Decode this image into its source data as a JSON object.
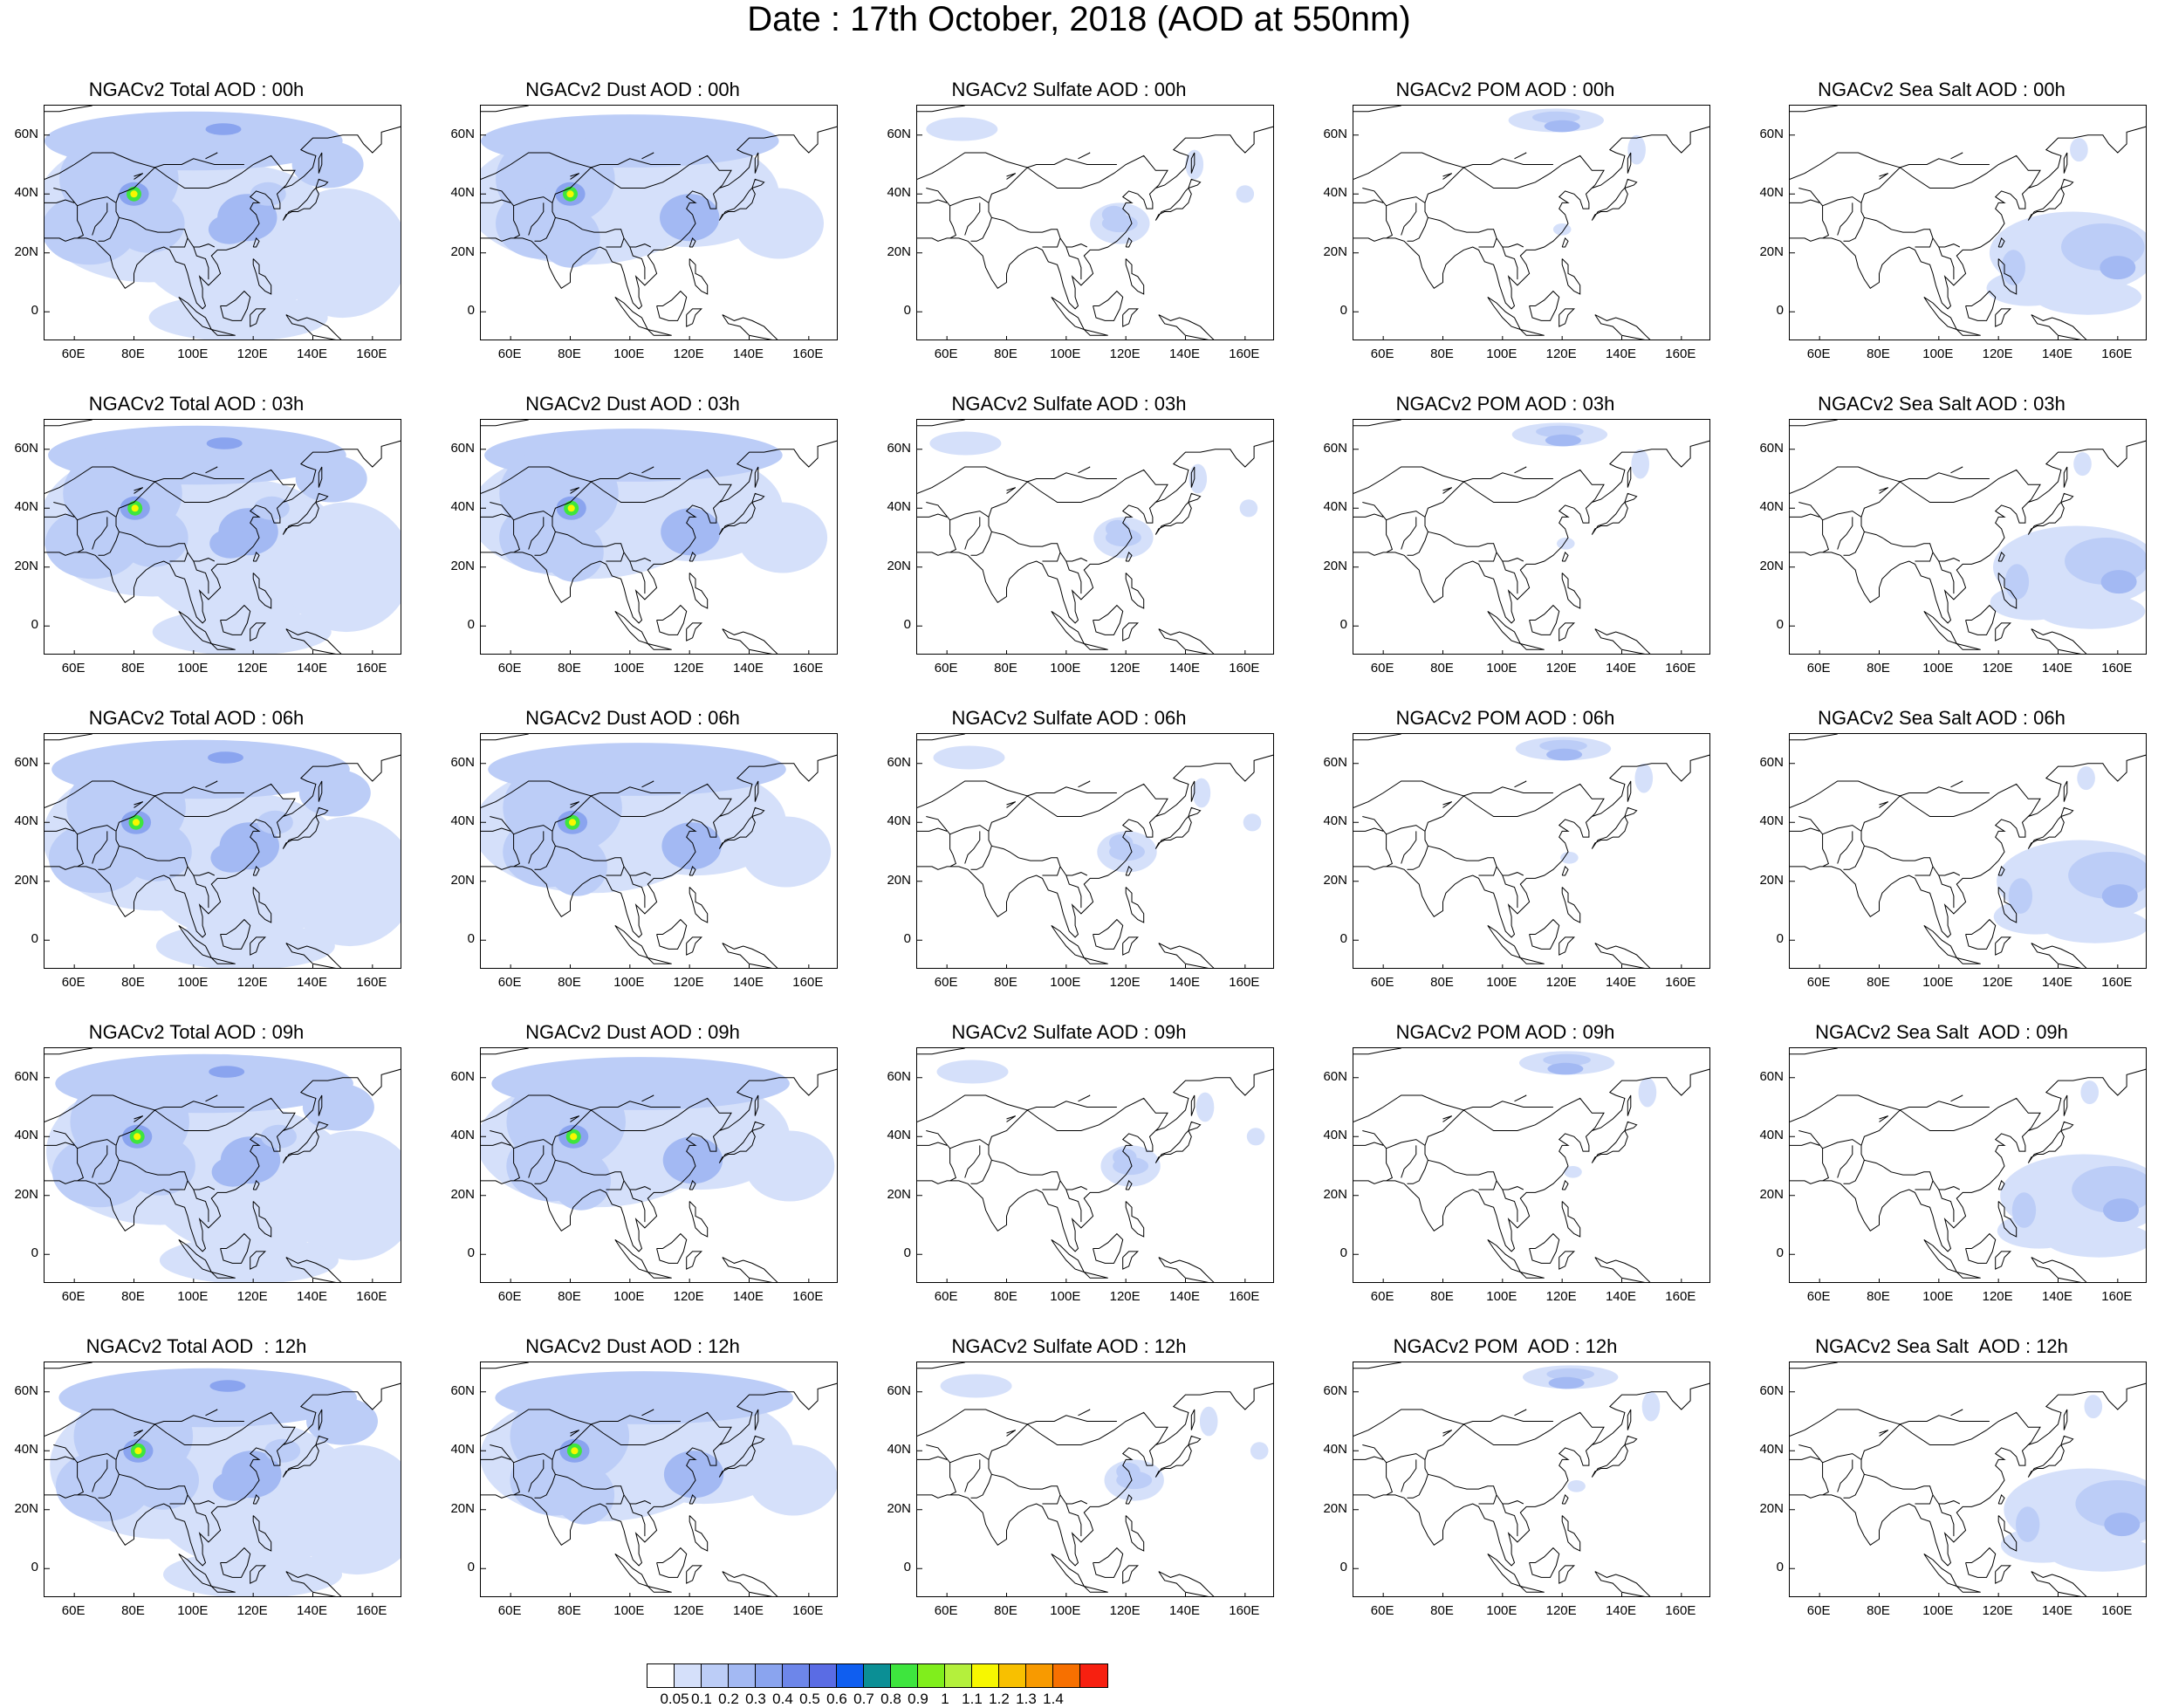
{
  "title": "Date : 17th October, 2018 (AOD at 550nm)",
  "lat_ticks": [
    "60N",
    "40N",
    "20N",
    "0"
  ],
  "lon_ticks": [
    "60E",
    "80E",
    "100E",
    "120E",
    "140E",
    "160E"
  ],
  "panels": [
    {
      "title": "NGACv2 Total AOD : 00h",
      "species": "total",
      "hour": "00h"
    },
    {
      "title": "NGACv2 Dust AOD : 00h",
      "species": "dust",
      "hour": "00h"
    },
    {
      "title": "NGACv2 Sulfate AOD : 00h",
      "species": "sulfate",
      "hour": "00h"
    },
    {
      "title": "NGACv2 POM AOD : 00h",
      "species": "pom",
      "hour": "00h"
    },
    {
      "title": "NGACv2 Sea Salt AOD : 00h",
      "species": "seasalt",
      "hour": "00h"
    },
    {
      "title": "NGACv2 Total AOD : 03h",
      "species": "total",
      "hour": "03h"
    },
    {
      "title": "NGACv2 Dust AOD : 03h",
      "species": "dust",
      "hour": "03h"
    },
    {
      "title": "NGACv2 Sulfate AOD : 03h",
      "species": "sulfate",
      "hour": "03h"
    },
    {
      "title": "NGACv2 POM AOD : 03h",
      "species": "pom",
      "hour": "03h"
    },
    {
      "title": "NGACv2 Sea Salt AOD : 03h",
      "species": "seasalt",
      "hour": "03h"
    },
    {
      "title": "NGACv2 Total AOD : 06h",
      "species": "total",
      "hour": "06h"
    },
    {
      "title": "NGACv2 Dust AOD : 06h",
      "species": "dust",
      "hour": "06h"
    },
    {
      "title": "NGACv2 Sulfate AOD : 06h",
      "species": "sulfate",
      "hour": "06h"
    },
    {
      "title": "NGACv2 POM AOD : 06h",
      "species": "pom",
      "hour": "06h"
    },
    {
      "title": "NGACv2 Sea Salt AOD : 06h",
      "species": "seasalt",
      "hour": "06h"
    },
    {
      "title": "NGACv2 Total AOD : 09h",
      "species": "total",
      "hour": "09h"
    },
    {
      "title": "NGACv2 Dust AOD : 09h",
      "species": "dust",
      "hour": "09h"
    },
    {
      "title": "NGACv2 Sulfate AOD : 09h",
      "species": "sulfate",
      "hour": "09h"
    },
    {
      "title": "NGACv2 POM AOD : 09h",
      "species": "pom",
      "hour": "09h"
    },
    {
      "title": "NGACv2 Sea Salt  AOD : 09h",
      "species": "seasalt",
      "hour": "09h"
    },
    {
      "title": "NGACv2 Total AOD  : 12h",
      "species": "total",
      "hour": "12h"
    },
    {
      "title": "NGACv2 Dust AOD : 12h",
      "species": "dust",
      "hour": "12h"
    },
    {
      "title": "NGACv2 Sulfate AOD : 12h",
      "species": "sulfate",
      "hour": "12h"
    },
    {
      "title": "NGACv2 POM  AOD : 12h",
      "species": "pom",
      "hour": "12h"
    },
    {
      "title": "NGACv2 Sea Salt  AOD : 12h",
      "species": "seasalt",
      "hour": "12h"
    }
  ],
  "colorbar": {
    "labels": [
      "0.05",
      "0.1",
      "0.2",
      "0.3",
      "0.4",
      "0.5",
      "0.6",
      "0.7",
      "0.8",
      "0.9",
      "1",
      "1.1",
      "1.2",
      "1.3",
      "1.4"
    ],
    "colors": [
      "#ffffff",
      "#d5e0fa",
      "#bccdf7",
      "#a3b9f3",
      "#8aa4ef",
      "#6d86ea",
      "#5a6ce4",
      "#0f5ef0",
      "#0b8f95",
      "#3ee53e",
      "#80ee1c",
      "#b4f03c",
      "#f7f700",
      "#f8c000",
      "#f89a00",
      "#f77000",
      "#f72010"
    ]
  }
}
